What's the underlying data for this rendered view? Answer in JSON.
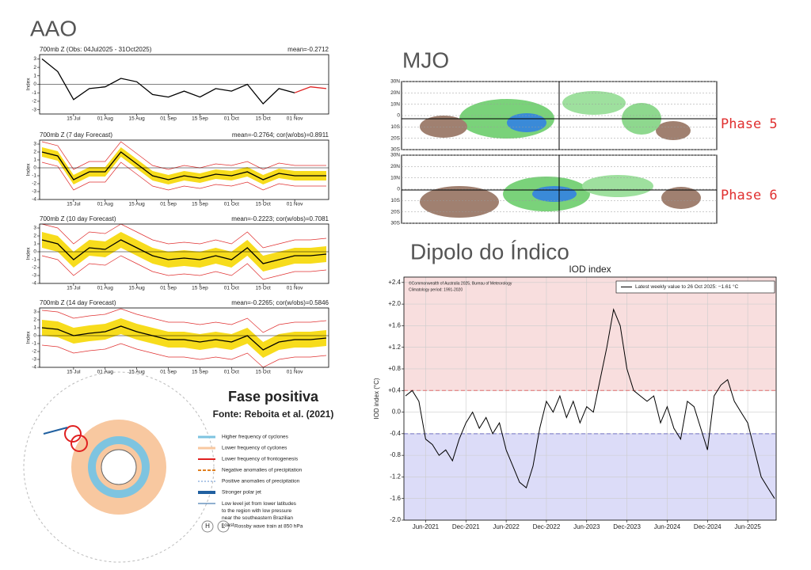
{
  "headings": {
    "aao": "AAO",
    "mjo": "MJO",
    "iod": "Dipolo do Índico"
  },
  "mjo": {
    "lat_labels": [
      "30N",
      "20N",
      "10N",
      "0",
      "10S",
      "20S",
      "30S"
    ],
    "phases": [
      "Phase 5",
      "Phase 6"
    ]
  },
  "diagram": {
    "title": "Fase positiva",
    "source": "Fonte: Reboita et al. (2021)",
    "legend": [
      "Higher frequency of cyclones",
      "Lower frequency of cyclones",
      "Lower frequency of frontogenesis",
      "Negative anomalies of precipitation",
      "Positive anomalies of precipitation",
      "Stronger polar jet",
      "Low level jet from lower latitudes to the region with low pressure near the southeastern Brazilian coast"
    ],
    "h": "H",
    "l": "L",
    "rossby": "Rossby wave train at 850 hPa"
  },
  "chart_data": [
    {
      "type": "line",
      "title": "700mb Z (Obs: 04Jul2025 - 31Oct2025)",
      "subtitle": "mean=-0.2712",
      "y_label": "Index",
      "categories": [
        null,
        null,
        "15 Jul",
        null,
        "01 Aug",
        null,
        "15 Aug",
        null,
        "01 Sep",
        null,
        "15 Sep",
        null,
        "01 Oct",
        null,
        "15 Oct",
        null,
        "01 Nov",
        null,
        null
      ],
      "ylim": [
        -3.5,
        3.5
      ],
      "yticks": [
        -3,
        -2,
        -1,
        0,
        1,
        2,
        3
      ],
      "series": [
        {
          "color": "#000000",
          "values": [
            3,
            1.5,
            -1.8,
            -0.5,
            -0.3,
            0.7,
            0.3,
            -1.2,
            -1.5,
            -0.8,
            -1.5,
            -0.5,
            -0.8,
            0,
            -2.3,
            -0.5,
            -1,
            null,
            null
          ]
        },
        {
          "color": "#e02020",
          "values": [
            null,
            null,
            null,
            null,
            null,
            null,
            null,
            null,
            null,
            null,
            null,
            null,
            null,
            null,
            null,
            null,
            -1,
            -0.3,
            -0.5
          ]
        }
      ]
    },
    {
      "type": "line",
      "title": "700mb Z (7 day Forecast)",
      "subtitle": "mean=-0.2764; cor(w/obs)=0.8911",
      "y_label": "Index",
      "categories": [
        null,
        null,
        "15 Jul",
        null,
        "01 Aug",
        null,
        "15 Aug",
        null,
        "01 Sep",
        null,
        "15 Sep",
        null,
        "01 Oct",
        null,
        "15 Oct",
        null,
        "01 Nov",
        null,
        null
      ],
      "ylim": [
        -4,
        3.5
      ],
      "yticks": [
        -4,
        -3,
        -2,
        -1,
        0,
        1,
        2,
        3
      ],
      "band": {
        "color": "#f7dc1c",
        "lower": [
          1.4,
          0.9,
          -2.1,
          -1.1,
          -1.1,
          1.4,
          -0.1,
          -1.6,
          -2.1,
          -1.6,
          -1.9,
          -1.4,
          -1.6,
          -1.1,
          -2.1,
          -1.3,
          -1.6,
          -1.6,
          -1.6
        ],
        "upper": [
          2.6,
          2.1,
          -0.9,
          0.1,
          0.1,
          2.6,
          1.1,
          -0.4,
          -0.9,
          -0.4,
          -0.7,
          -0.2,
          -0.4,
          0.1,
          -0.9,
          -0.1,
          -0.4,
          -0.4,
          -0.4
        ]
      },
      "envelope": {
        "color": "#e03030",
        "lower": [
          0.7,
          0.2,
          -2.8,
          -1.8,
          -1.8,
          0.7,
          -0.8,
          -2.3,
          -2.8,
          -2.3,
          -2.6,
          -2.1,
          -2.3,
          -1.8,
          -2.8,
          -2,
          -2.3,
          -2.3,
          -2.3
        ],
        "upper": [
          3.3,
          2.8,
          -0.2,
          0.8,
          0.8,
          3.3,
          1.8,
          0.3,
          -0.2,
          0.3,
          0,
          0.5,
          0.3,
          0.8,
          -0.2,
          0.6,
          0.3,
          0.3,
          0.3
        ]
      },
      "series": [
        {
          "color": "#000000",
          "values": [
            2,
            1.5,
            -1.5,
            -0.5,
            -0.5,
            2,
            0.5,
            -1,
            -1.5,
            -1,
            -1.3,
            -0.8,
            -1,
            -0.5,
            -1.5,
            -0.7,
            -1,
            -1,
            -1
          ]
        }
      ]
    },
    {
      "type": "line",
      "title": "700mb Z (10 day Forecast)",
      "subtitle": "mean=-0.2223; cor(w/obs)=0.7081",
      "y_label": "Index",
      "categories": [
        null,
        null,
        "15 Jul",
        null,
        "01 Aug",
        null,
        "15 Aug",
        null,
        "01 Sep",
        null,
        "15 Sep",
        null,
        "01 Oct",
        null,
        "15 Oct",
        null,
        "01 Nov",
        null,
        null
      ],
      "ylim": [
        -4,
        3.5
      ],
      "yticks": [
        -4,
        -3,
        -2,
        -1,
        0,
        1,
        2,
        3
      ],
      "band": {
        "color": "#f7dc1c",
        "lower": [
          0.5,
          0,
          -2,
          -0.5,
          -0.7,
          0.5,
          -0.5,
          -1.5,
          -2,
          -1.8,
          -2,
          -1.5,
          -2,
          -0.5,
          -2.5,
          -2,
          -1.5,
          -1.5,
          -1.3
        ],
        "upper": [
          2.5,
          2,
          0,
          1.5,
          1.3,
          2.5,
          1.5,
          0.5,
          0,
          0.2,
          0,
          0.5,
          0,
          1.5,
          -0.5,
          0,
          0.5,
          0.5,
          0.7
        ]
      },
      "envelope": {
        "color": "#e03030",
        "lower": [
          -0.5,
          -1,
          -3,
          -1.5,
          -1.7,
          -0.5,
          -1.5,
          -2.5,
          -3,
          -2.8,
          -3,
          -2.5,
          -3,
          -1.5,
          -3.5,
          -3,
          -2.5,
          -2.5,
          -2.3
        ],
        "upper": [
          3.5,
          3,
          1,
          2.5,
          2.3,
          3.5,
          2.5,
          1.5,
          1,
          1.2,
          1,
          1.5,
          1,
          2.5,
          0.5,
          1,
          1.5,
          1.5,
          1.7
        ]
      },
      "series": [
        {
          "color": "#000000",
          "values": [
            1.5,
            1,
            -1,
            0.5,
            0.3,
            1.5,
            0.5,
            -0.5,
            -1,
            -0.8,
            -1,
            -0.5,
            -1,
            0.5,
            -1.5,
            -1,
            -0.5,
            -0.5,
            -0.3
          ]
        }
      ]
    },
    {
      "type": "line",
      "title": "700mb Z (14 day Forecast)",
      "subtitle": "mean=-0.2265; cor(w/obs)=0.5846",
      "y_label": "Index",
      "categories": [
        null,
        null,
        "15 Jul",
        null,
        "01 Aug",
        null,
        "15 Aug",
        null,
        "01 Sep",
        null,
        "15 Sep",
        null,
        "01 Oct",
        null,
        "15 Oct",
        null,
        "01 Nov",
        null,
        null
      ],
      "ylim": [
        -4,
        3.5
      ],
      "yticks": [
        -4,
        -3,
        -2,
        -1,
        0,
        1,
        2,
        3
      ],
      "band": {
        "color": "#f7dc1c",
        "lower": [
          0,
          -0.2,
          -1,
          -0.7,
          -0.5,
          0.2,
          -0.5,
          -1,
          -1.5,
          -1.5,
          -1.8,
          -1.5,
          -1.8,
          -1,
          -2.8,
          -1.8,
          -1.5,
          -1.5,
          -1.3
        ],
        "upper": [
          2,
          1.8,
          1,
          1.3,
          1.5,
          2.2,
          1.5,
          1,
          0.5,
          0.5,
          0.2,
          0.5,
          0.2,
          1,
          -0.8,
          0.2,
          0.5,
          0.5,
          0.7
        ]
      },
      "envelope": {
        "color": "#e03030",
        "lower": [
          -1.2,
          -1.4,
          -2.2,
          -1.9,
          -1.7,
          -1,
          -1.7,
          -2.2,
          -2.7,
          -2.7,
          -3,
          -2.7,
          -3,
          -2.2,
          -4,
          -3,
          -2.7,
          -2.7,
          -2.5
        ],
        "upper": [
          3.2,
          3,
          2.2,
          2.5,
          2.7,
          3.4,
          2.7,
          2.2,
          1.7,
          1.7,
          1.4,
          1.7,
          1.4,
          2.2,
          0.4,
          1.4,
          1.7,
          1.7,
          1.9
        ]
      },
      "series": [
        {
          "color": "#000000",
          "values": [
            1,
            0.8,
            0,
            0.3,
            0.5,
            1.2,
            0.5,
            0,
            -0.5,
            -0.5,
            -0.8,
            -0.5,
            -0.8,
            0,
            -1.8,
            -0.8,
            -0.5,
            -0.5,
            -0.3
          ]
        }
      ]
    },
    {
      "type": "line",
      "title": "IOD index",
      "y_label": "IOD index (°C)",
      "notes": [
        "©Commonwealth of Australia 2025, Bureau of Meteorology",
        "Climatology period: 1991-2020"
      ],
      "legend": "upper right",
      "grid": true,
      "positive_threshold": 0.4,
      "negative_threshold": -0.4,
      "positive_color": "#f8dede",
      "negative_color": "#dcdcf8",
      "threshold_colors": [
        "#e07070",
        "#7070c0"
      ],
      "categories": [
        null,
        null,
        null,
        "Jun-2021",
        null,
        null,
        null,
        null,
        null,
        "Dec-2021",
        null,
        null,
        null,
        null,
        null,
        "Jun-2022",
        null,
        null,
        null,
        null,
        null,
        "Dec-2022",
        null,
        null,
        null,
        null,
        null,
        "Jun-2023",
        null,
        null,
        null,
        null,
        null,
        "Dec-2023",
        null,
        null,
        null,
        null,
        null,
        "Jun-2024",
        null,
        null,
        null,
        null,
        null,
        "Dec-2024",
        null,
        null,
        null,
        null,
        null,
        "Jun-2025",
        null,
        null,
        null,
        null
      ],
      "ylim": [
        -2.0,
        2.5
      ],
      "yticks": [
        {
          "value": -2.0,
          "label": "-2.0"
        },
        -1.6,
        -1.2,
        -0.8,
        -0.4,
        {
          "value": 0,
          "label": "0.0"
        },
        {
          "value": 0.4,
          "label": "+0.4"
        },
        {
          "value": 0.8,
          "label": "+0.8"
        },
        {
          "value": 1.2,
          "label": "+1.2"
        },
        {
          "value": 1.6,
          "label": "+1.6"
        },
        {
          "value": 2.0,
          "label": "+2.0"
        },
        {
          "value": 2.4,
          "label": "+2.4"
        }
      ],
      "series": [
        {
          "name": "Latest weekly value to 26 Oct 2025: −1.61 °C",
          "color": "#000000",
          "values": [
            0.3,
            0.4,
            0.2,
            -0.5,
            -0.6,
            -0.8,
            -0.7,
            -0.9,
            -0.5,
            -0.2,
            0,
            -0.3,
            -0.1,
            -0.4,
            -0.2,
            -0.7,
            -1.0,
            -1.3,
            -1.4,
            -1.0,
            -0.3,
            0.2,
            0.0,
            0.3,
            -0.1,
            0.2,
            -0.2,
            0.1,
            0.0,
            0.6,
            1.2,
            1.9,
            1.6,
            0.8,
            0.4,
            0.3,
            0.2,
            0.3,
            -0.2,
            0.1,
            -0.3,
            -0.5,
            0.2,
            0.1,
            -0.3,
            -0.7,
            0.3,
            0.5,
            0.6,
            0.2,
            0.0,
            -0.2,
            -0.7,
            -1.2,
            -1.4,
            -1.6
          ]
        }
      ]
    }
  ]
}
